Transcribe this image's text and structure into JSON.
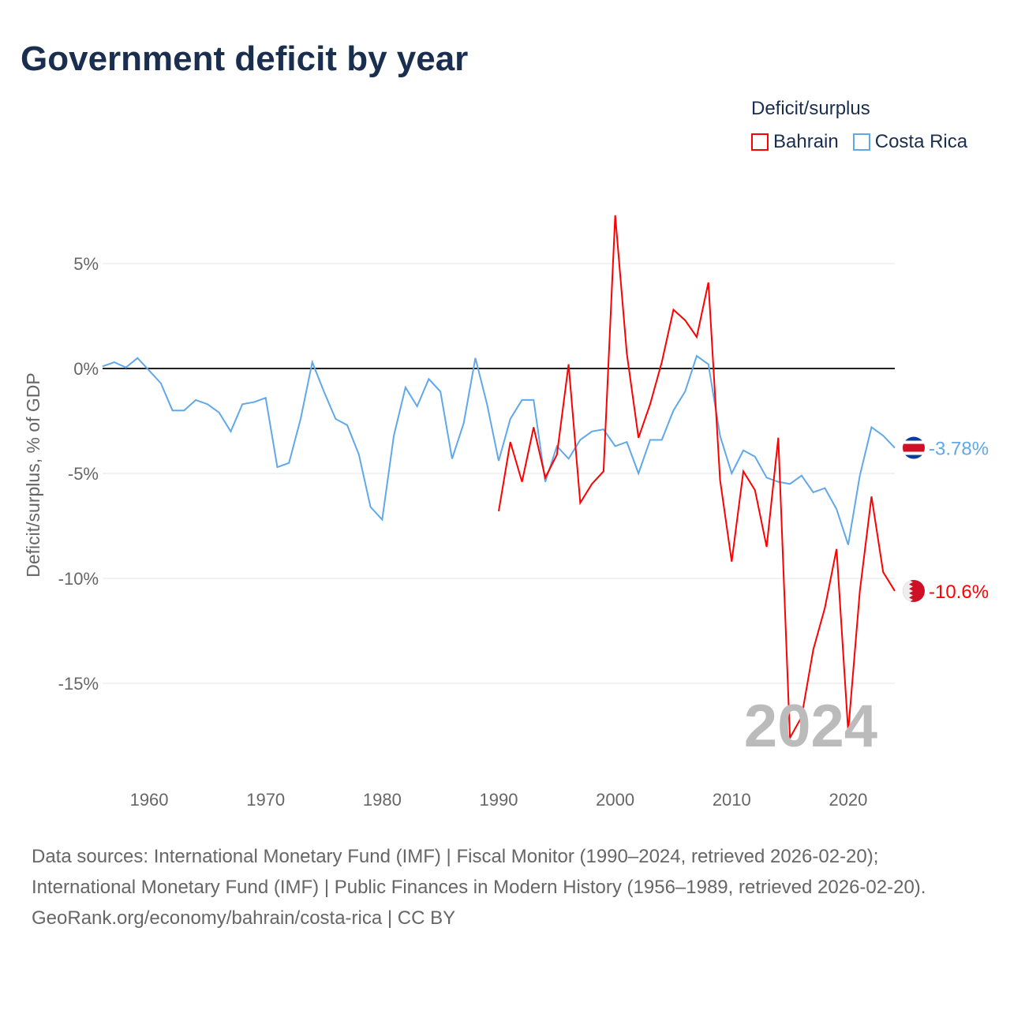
{
  "chart_data": {
    "type": "line",
    "title": "Government deficit by year",
    "ylabel": "Deficit/surplus, % of GDP",
    "xlabel": "",
    "ylim": [
      -19,
      8.5
    ],
    "xlim": [
      1956,
      2024
    ],
    "yticks": [
      {
        "v": 5,
        "label": "5%"
      },
      {
        "v": 0,
        "label": "0%"
      },
      {
        "v": -5,
        "label": "-5%"
      },
      {
        "v": -10,
        "label": "-10%"
      },
      {
        "v": -15,
        "label": "-15%"
      }
    ],
    "xticks": [
      {
        "v": 1960,
        "label": "1960"
      },
      {
        "v": 1970,
        "label": "1970"
      },
      {
        "v": 1980,
        "label": "1980"
      },
      {
        "v": 1990,
        "label": "1990"
      },
      {
        "v": 2000,
        "label": "2000"
      },
      {
        "v": 2010,
        "label": "2010"
      },
      {
        "v": 2020,
        "label": "2020"
      }
    ],
    "legend_title": "Deficit/surplus",
    "legend_placement": "top-right",
    "year_watermark": "2024",
    "series": [
      {
        "name": "Bahrain",
        "color": "#ff0000",
        "end_label": "-10.6%",
        "start_year": 1990,
        "values": [
          -6.8,
          -3.5,
          -5.4,
          -2.8,
          -5.2,
          -4.1,
          0.2,
          -6.4,
          -5.5,
          -4.9,
          7.3,
          0.7,
          -3.3,
          -1.7,
          0.3,
          2.8,
          2.3,
          1.5,
          4.1,
          -5.3,
          -9.2,
          -4.9,
          -5.8,
          -8.5,
          -3.3,
          -17.6,
          -16.6,
          -13.4,
          -11.4,
          -8.6,
          -17.3,
          -10.6,
          -6.1,
          -9.7,
          -10.6
        ]
      },
      {
        "name": "Costa Rica",
        "color": "#5fa8ea",
        "end_label": "-3.78%",
        "start_year": 1956,
        "values": [
          0.1,
          0.3,
          0.05,
          0.5,
          -0.1,
          -0.7,
          -2.0,
          -2.0,
          -1.5,
          -1.7,
          -2.1,
          -3.0,
          -1.7,
          -1.6,
          -1.4,
          -4.7,
          -4.5,
          -2.4,
          0.3,
          -1.1,
          -2.4,
          -2.7,
          -4.1,
          -6.6,
          -7.2,
          -3.2,
          -0.9,
          -1.8,
          -0.5,
          -1.1,
          -4.3,
          -2.6,
          0.5,
          -1.7,
          -4.4,
          -2.4,
          -1.5,
          -1.5,
          -5.4,
          -3.7,
          -4.3,
          -3.4,
          -3.0,
          -2.9,
          -3.7,
          -3.5,
          -5.0,
          -3.4,
          -3.4,
          -2.0,
          -1.1,
          0.6,
          0.2,
          -3.2,
          -5.0,
          -3.9,
          -4.2,
          -5.2,
          -5.4,
          -5.5,
          -5.1,
          -5.9,
          -5.7,
          -6.7,
          -8.4,
          -5.1,
          -2.8,
          -3.2,
          -3.78
        ]
      }
    ]
  },
  "footer": {
    "sources": "Data sources: International Monetary Fund (IMF) | Fiscal Monitor (1990–2024, retrieved 2026-02-20); International Monetary Fund (IMF) | Public Finances in Modern History (1956–1989, retrieved 2026-02-20).",
    "credit": "GeoRank.org/economy/bahrain/costa-rica | CC BY"
  }
}
